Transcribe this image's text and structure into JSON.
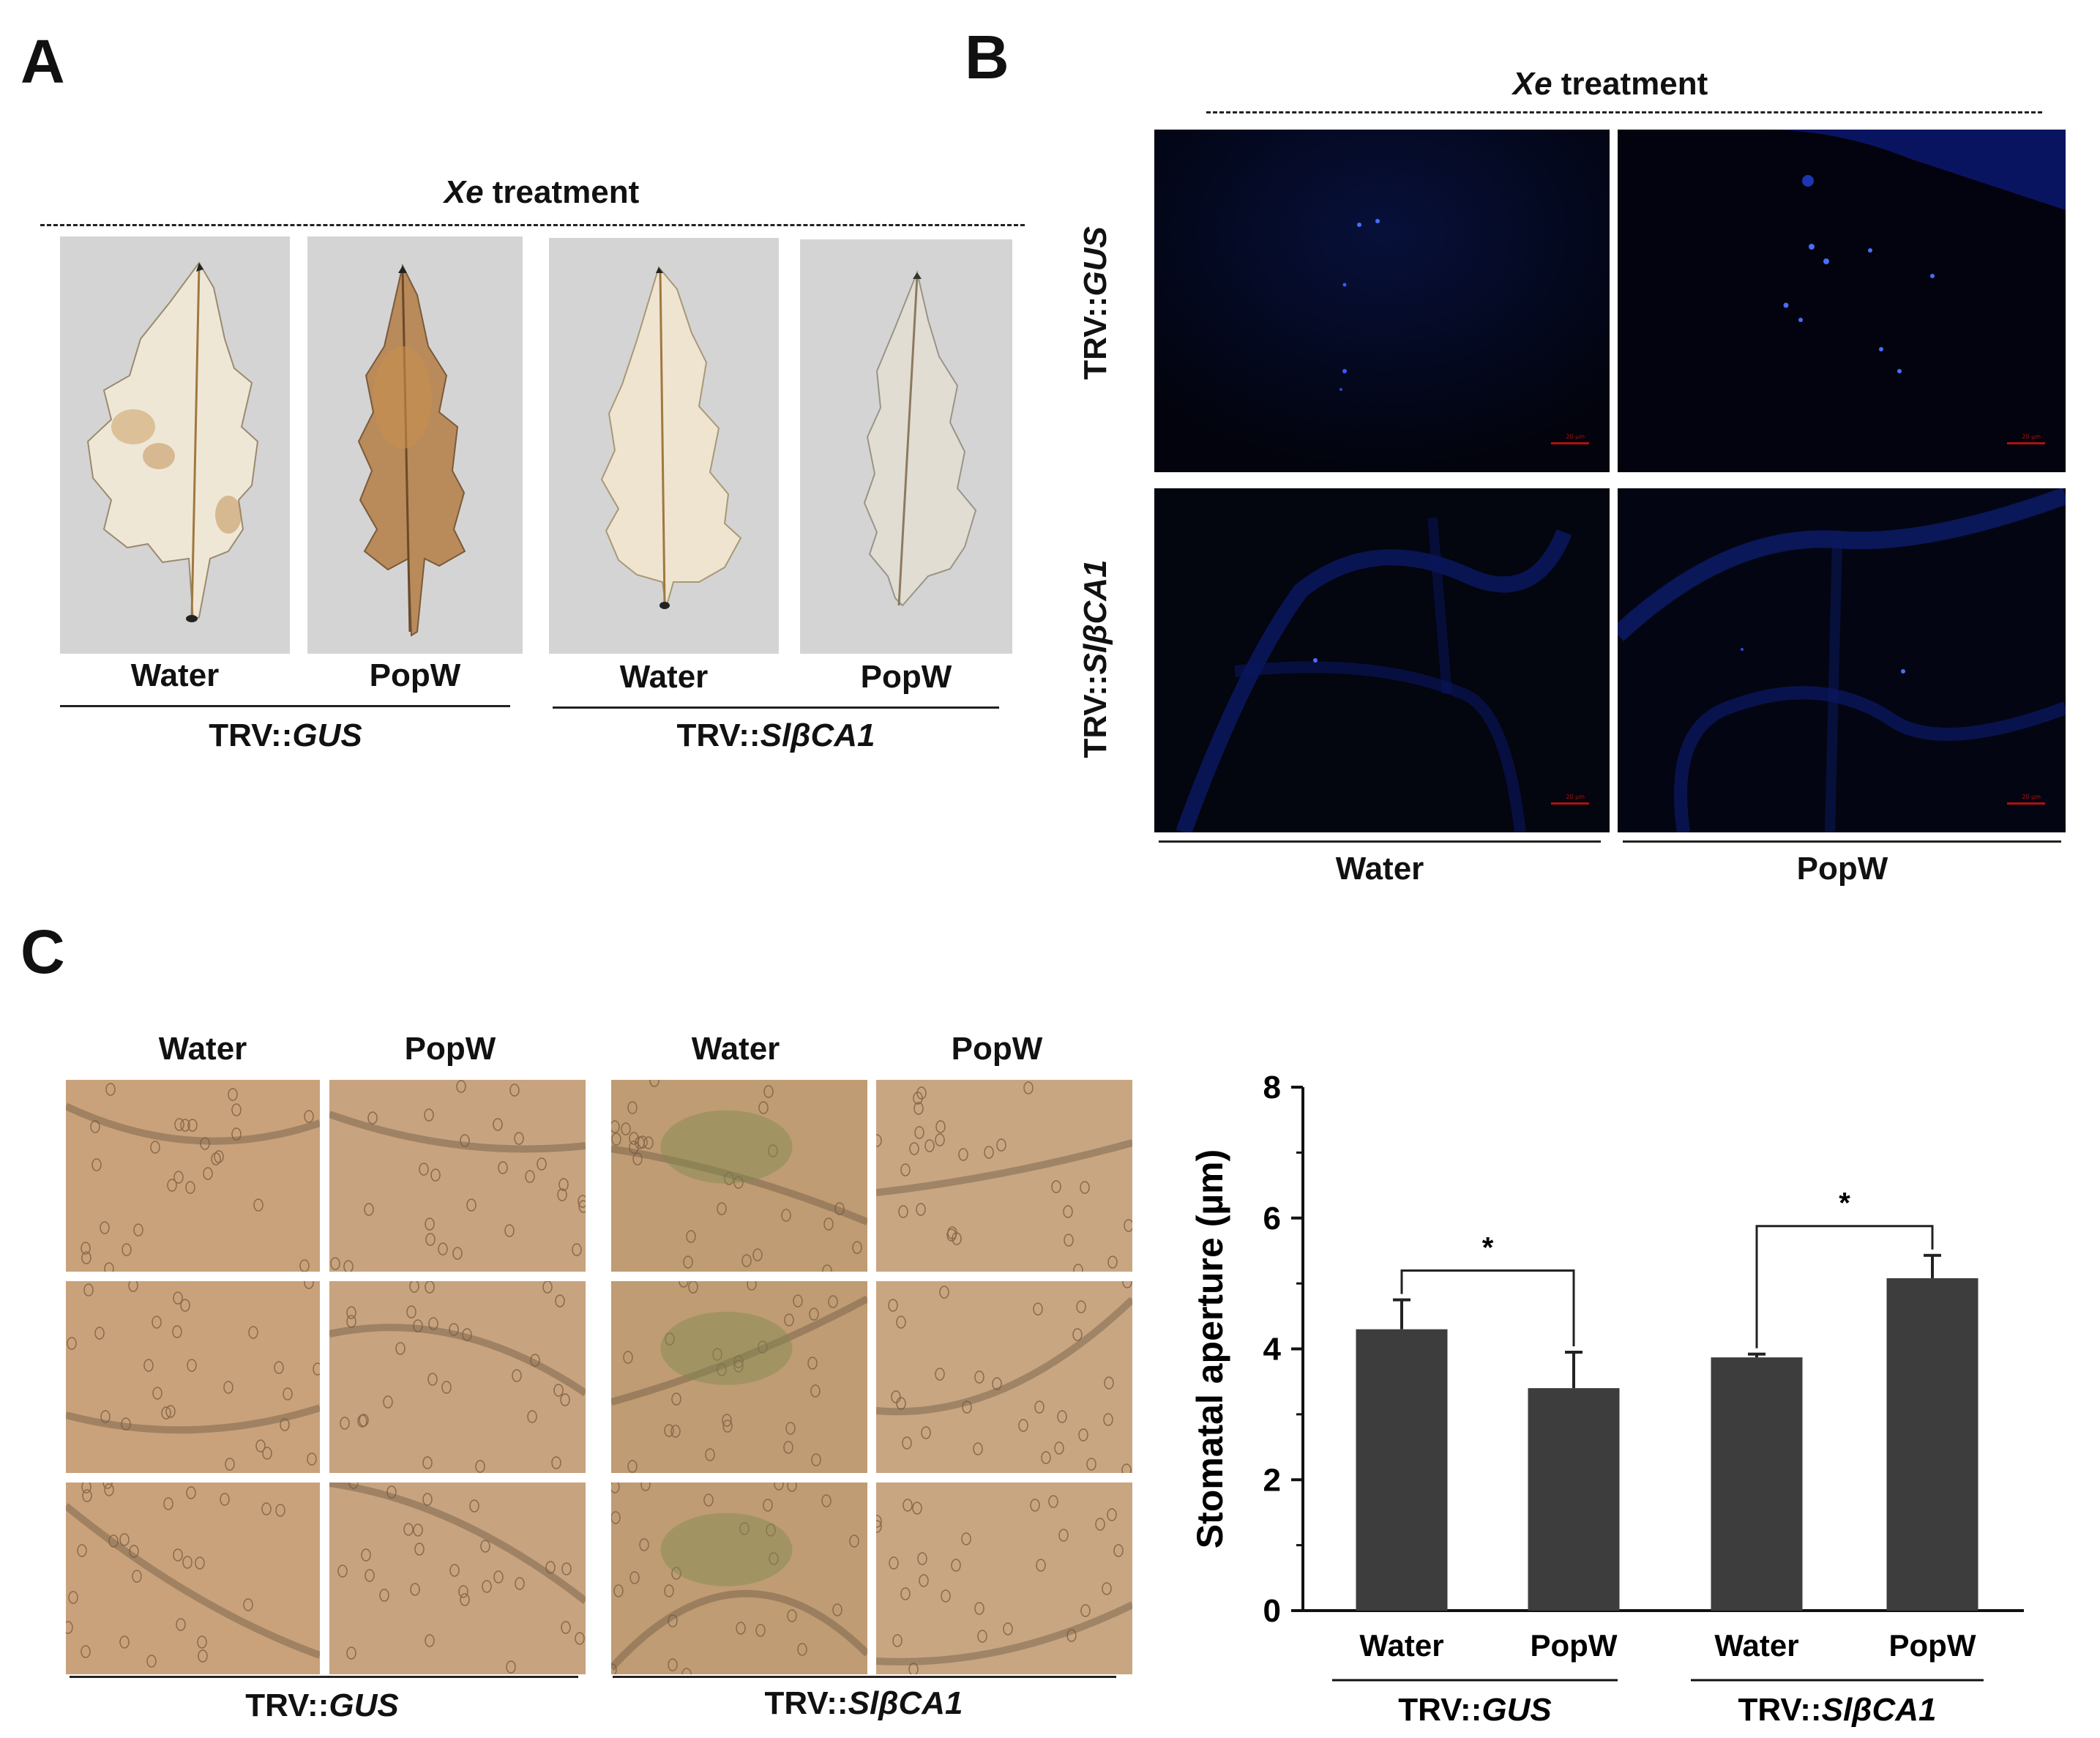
{
  "panel_a": {
    "letter": "A",
    "treatment_italic": "Xe",
    "treatment_rest": " treatment",
    "columns": [
      "Water",
      "PopW",
      "Water",
      "PopW"
    ],
    "groups": [
      {
        "prefix": "TRV::",
        "gene": "GUS"
      },
      {
        "prefix": "TRV::",
        "gene": "SlβCA1"
      }
    ]
  },
  "panel_b": {
    "letter": "B",
    "treatment_italic": "Xe",
    "treatment_rest": " treatment",
    "rows": [
      {
        "prefix": "TRV::",
        "gene": "GUS"
      },
      {
        "prefix": "TRV::",
        "gene": "SlβCA1"
      }
    ],
    "columns": [
      "Water",
      "PopW"
    ],
    "scale_text": "20 µm"
  },
  "panel_c": {
    "letter": "C",
    "micro_columns": [
      "Water",
      "PopW",
      "Water",
      "PopW"
    ],
    "groups": [
      {
        "prefix": "TRV::",
        "gene": "GUS"
      },
      {
        "prefix": "TRV::",
        "gene": "SlβCA1"
      }
    ]
  },
  "chart_data": {
    "type": "bar",
    "ylabel": "Stomatal aperture (µm)",
    "ylim": [
      0,
      8
    ],
    "yticks": [
      0,
      2,
      4,
      6,
      8
    ],
    "categories": [
      "Water",
      "PopW",
      "Water",
      "PopW"
    ],
    "groups": [
      {
        "prefix": "TRV::",
        "gene": "GUS"
      },
      {
        "prefix": "TRV::",
        "gene": "SlβCA1"
      }
    ],
    "values": [
      4.3,
      3.4,
      3.87,
      5.08
    ],
    "errors": [
      0.45,
      0.55,
      0.05,
      0.35
    ],
    "significance": [
      {
        "pair": [
          0,
          1
        ],
        "label": "*"
      },
      {
        "pair": [
          2,
          3
        ],
        "label": "*"
      }
    ],
    "bar_color": "#3d3d3d"
  }
}
